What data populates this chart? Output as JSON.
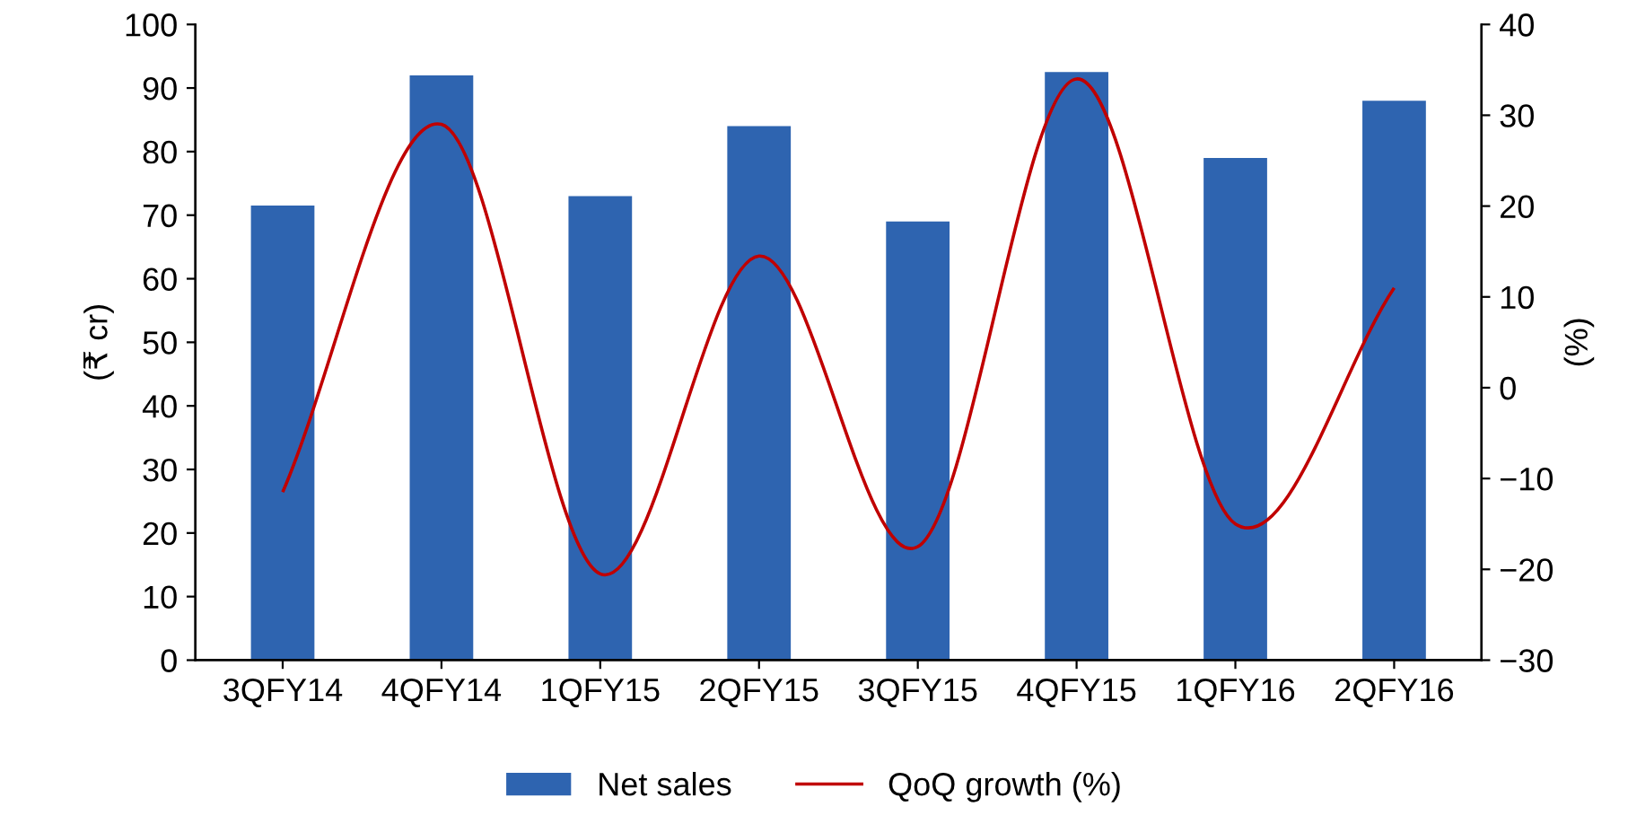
{
  "chart_data": {
    "type": "bar",
    "categories": [
      "3QFY14",
      "4QFY14",
      "1QFY15",
      "2QFY15",
      "3QFY15",
      "4QFY15",
      "1QFY16",
      "2QFY16"
    ],
    "series": [
      {
        "name": "Net sales",
        "color": "#2e64b0",
        "values": [
          71.5,
          92,
          73,
          84,
          69,
          92.5,
          79,
          88
        ]
      },
      {
        "name": "QoQ growth (%)",
        "type": "line",
        "axis": "y2",
        "color": "#c00000",
        "values": [
          -11.5,
          29,
          -20.5,
          14.5,
          -17.5,
          34,
          -15,
          11
        ]
      }
    ],
    "ylabel": "(₹ cr)",
    "y2label": "(%)",
    "ylim": [
      0,
      100
    ],
    "yticks": [
      0,
      10,
      20,
      30,
      40,
      50,
      60,
      70,
      80,
      90,
      100
    ],
    "y2lim": [
      -30,
      40
    ],
    "y2ticks": [
      -30,
      -20,
      -10,
      0,
      10,
      20,
      30,
      40
    ],
    "grid": false,
    "legend": "bottom",
    "marker": "none",
    "line_style": "solid"
  }
}
